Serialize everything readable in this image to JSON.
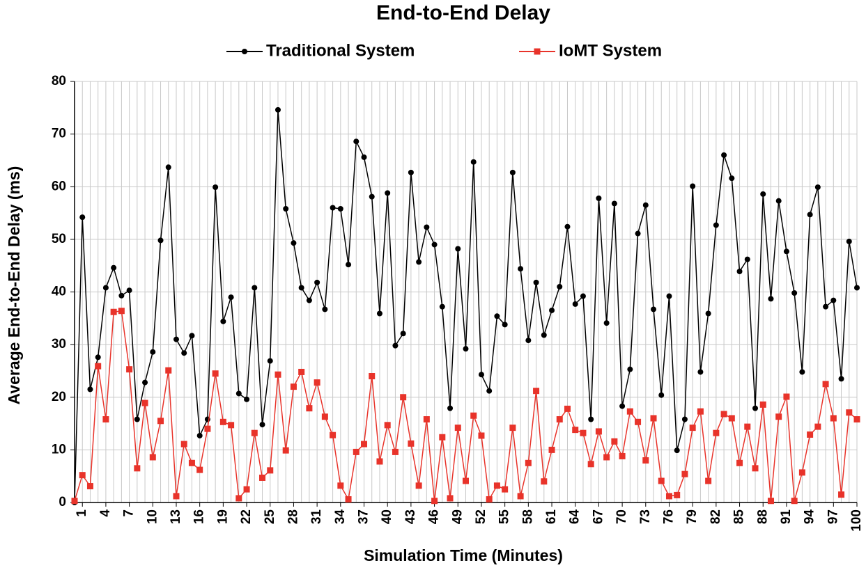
{
  "chart_data": {
    "type": "line",
    "title": "End-to-End Delay",
    "x_label": "Simulation Time (Minutes)",
    "y_label": "Average End-to-End Delay (ms)",
    "x": [
      0,
      1,
      2,
      3,
      4,
      5,
      6,
      7,
      8,
      9,
      10,
      11,
      12,
      13,
      14,
      15,
      16,
      17,
      18,
      19,
      20,
      21,
      22,
      23,
      24,
      25,
      26,
      27,
      28,
      29,
      30,
      31,
      32,
      33,
      34,
      35,
      36,
      37,
      38,
      39,
      40,
      41,
      42,
      43,
      44,
      45,
      46,
      47,
      48,
      49,
      50,
      51,
      52,
      53,
      54,
      55,
      56,
      57,
      58,
      59,
      60,
      61,
      62,
      63,
      64,
      65,
      66,
      67,
      68,
      69,
      70,
      71,
      72,
      73,
      74,
      75,
      76,
      77,
      78,
      79,
      80,
      81,
      82,
      83,
      84,
      85,
      86,
      87,
      88,
      89,
      90,
      91,
      92,
      93,
      94,
      95,
      96,
      97,
      98,
      99,
      100
    ],
    "series": [
      {
        "name": "Traditional System",
        "color": "#000000",
        "marker": "circle",
        "values": [
          0,
          54.2,
          21.5,
          27.6,
          40.8,
          44.6,
          39.3,
          40.3,
          15.8,
          22.8,
          28.6,
          49.8,
          63.7,
          31,
          28.4,
          31.7,
          12.7,
          15.8,
          59.9,
          34.4,
          39,
          20.7,
          19.6,
          40.8,
          14.8,
          26.9,
          74.6,
          55.8,
          49.3,
          40.8,
          38.4,
          41.8,
          36.7,
          56,
          55.8,
          45.2,
          68.6,
          65.6,
          58.1,
          35.9,
          58.8,
          29.8,
          32.1,
          62.7,
          45.7,
          52.3,
          49,
          37.2,
          17.9,
          48.2,
          29.2,
          64.7,
          24.3,
          21.2,
          35.4,
          33.8,
          62.7,
          44.4,
          30.8,
          41.8,
          31.8,
          36.5,
          41,
          52.4,
          37.7,
          39.2,
          15.8,
          57.8,
          34.1,
          56.8,
          18.3,
          25.3,
          51.1,
          56.5,
          36.7,
          20.4,
          39.2,
          9.9,
          15.8,
          60.1,
          24.8,
          35.9,
          52.7,
          66,
          61.6,
          43.9,
          46.2,
          17.9,
          58.6,
          38.7,
          57.3,
          47.7,
          39.8,
          24.8,
          54.7,
          59.9,
          37.2,
          38.4,
          23.5,
          49.6,
          40.8
        ]
      },
      {
        "name": "IoMT System",
        "color": "#e8332a",
        "marker": "square",
        "values": [
          0.3,
          5.2,
          3.1,
          25.9,
          15.8,
          36.2,
          36.4,
          25.3,
          6.5,
          18.9,
          8.6,
          15.5,
          25.1,
          1.2,
          11.1,
          7.5,
          6.2,
          14,
          24.5,
          15.3,
          14.7,
          0.8,
          2.5,
          13.2,
          4.7,
          6.1,
          24.3,
          9.9,
          22,
          24.8,
          17.9,
          22.8,
          16.3,
          12.8,
          3.2,
          0.6,
          9.6,
          11.1,
          24,
          7.8,
          14.7,
          9.6,
          20,
          11.2,
          3.2,
          15.8,
          0.3,
          12.4,
          0.8,
          14.2,
          4.1,
          16.5,
          12.7,
          0.6,
          3.2,
          2.5,
          14.2,
          1.2,
          7.5,
          21.2,
          4,
          10,
          15.8,
          17.8,
          13.8,
          13.2,
          7.3,
          13.5,
          8.6,
          11.6,
          8.8,
          17.3,
          15.3,
          8,
          16,
          4.1,
          1.2,
          1.4,
          5.4,
          14.2,
          17.3,
          4.1,
          13.2,
          16.8,
          16,
          7.5,
          14.4,
          6.5,
          18.6,
          0.3,
          16.3,
          20.1,
          0.3,
          5.7,
          12.9,
          14.4,
          22.5,
          16,
          1.5,
          17.1,
          15.8
        ]
      }
    ],
    "xlim": [
      0,
      100
    ],
    "xticks": [
      1,
      4,
      7,
      10,
      13,
      16,
      19,
      22,
      25,
      28,
      31,
      34,
      37,
      40,
      43,
      46,
      49,
      52,
      55,
      58,
      61,
      64,
      67,
      70,
      73,
      76,
      79,
      82,
      85,
      88,
      91,
      94,
      97,
      100
    ],
    "ylim": [
      0,
      80
    ],
    "yticks": [
      0,
      10,
      20,
      30,
      40,
      50,
      60,
      70,
      80
    ],
    "grid": true,
    "legend": "top"
  }
}
